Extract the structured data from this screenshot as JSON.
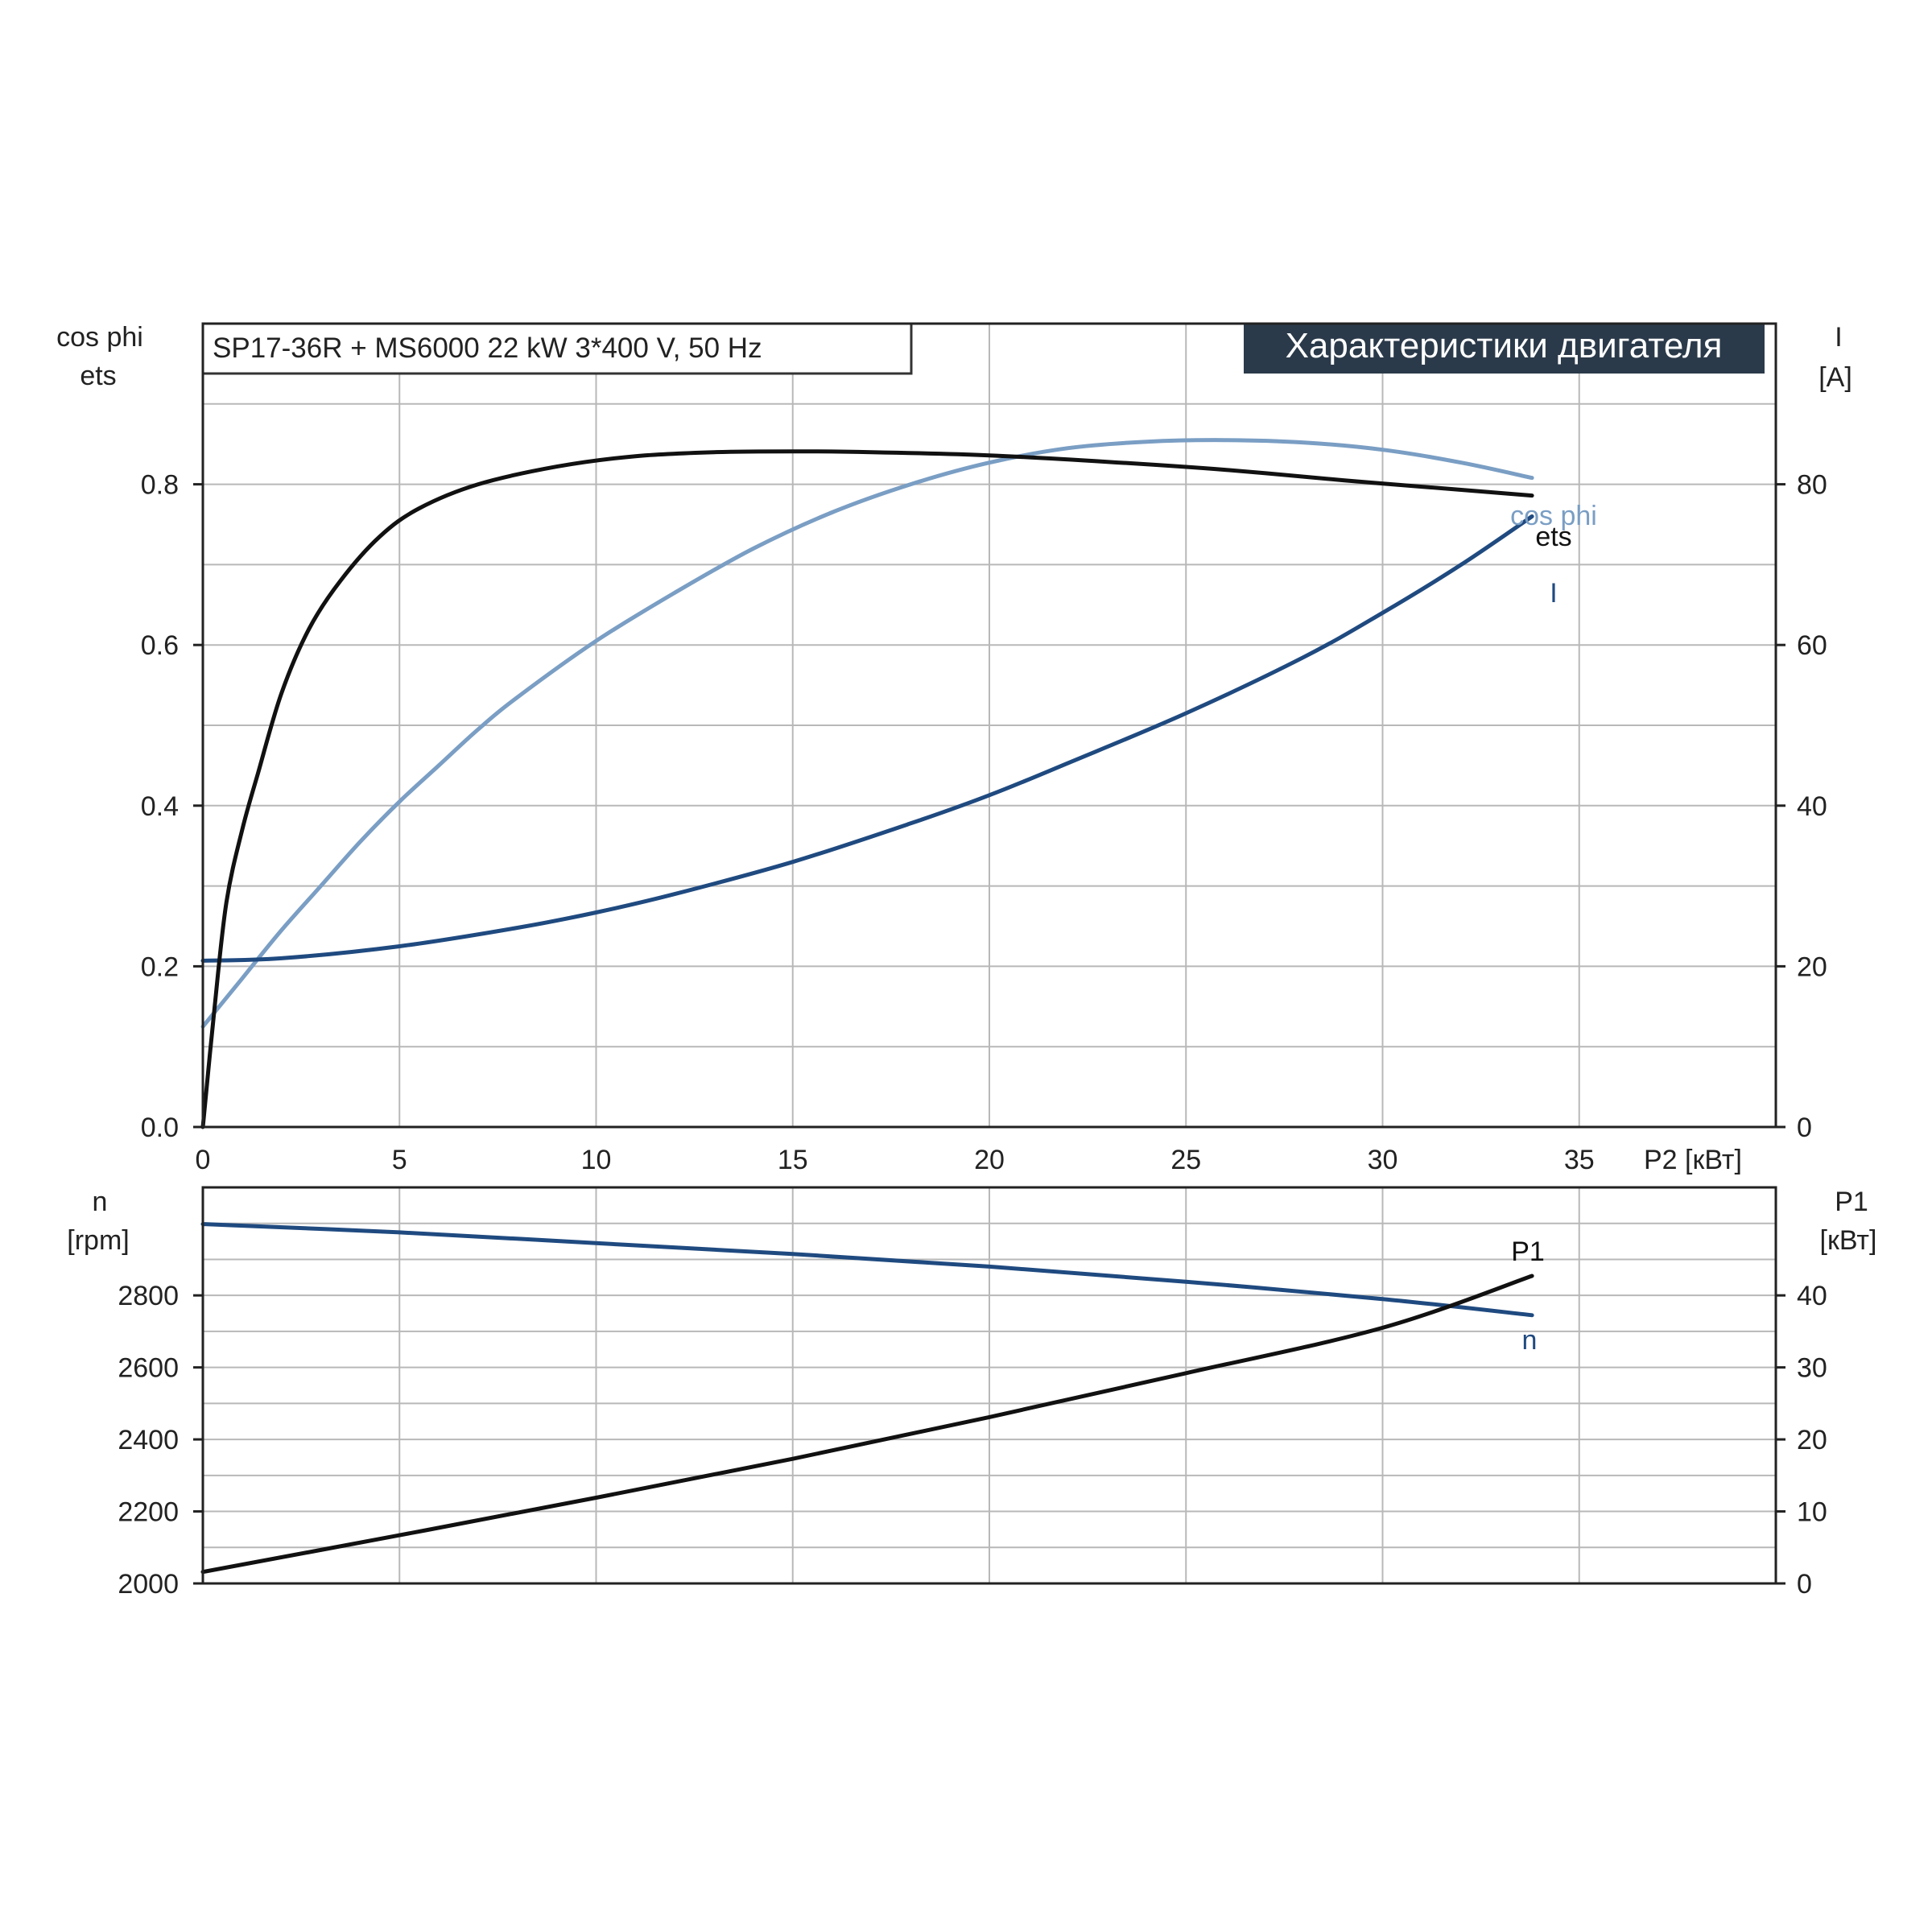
{
  "chart_data": [
    {
      "type": "line",
      "subtitle": "SP17-36R + MS6000   22 kW   3*400 V, 50 Hz",
      "title": "Характеристики двигателя",
      "xlabel": "P2 [кВт]",
      "ylabel_left": [
        "cos phi",
        "ets"
      ],
      "ylabel_right": [
        "I",
        "[A]"
      ],
      "xlim": [
        0,
        40
      ],
      "ylim_left": [
        0,
        1.0
      ],
      "ylim_right": [
        0,
        100
      ],
      "x_ticks": [
        "0",
        "5",
        "10",
        "15",
        "20",
        "25",
        "30",
        "35"
      ],
      "y_ticks_left": [
        "0.0",
        "0.2",
        "0.4",
        "0.6",
        "0.8"
      ],
      "y_ticks_right": [
        "0",
        "20",
        "40",
        "60",
        "80"
      ],
      "grid": true,
      "series": [
        {
          "name": "ets",
          "axis": "left",
          "color": "#111111",
          "x": [
            0,
            0.3,
            0.6,
            1.0,
            1.4,
            2.0,
            2.7,
            3.5,
            4.5,
            5.5,
            7,
            9,
            11,
            13,
            15,
            17,
            20,
            23,
            26,
            29,
            31,
            33.8
          ],
          "y": [
            0.0,
            0.15,
            0.28,
            0.37,
            0.44,
            0.54,
            0.62,
            0.68,
            0.735,
            0.77,
            0.8,
            0.822,
            0.835,
            0.84,
            0.841,
            0.84,
            0.836,
            0.828,
            0.818,
            0.805,
            0.797,
            0.786
          ]
        },
        {
          "name": "cos phi",
          "axis": "left",
          "color": "#7a9ec4",
          "x": [
            0,
            1,
            2,
            3,
            4,
            5,
            6,
            7,
            8,
            10,
            12,
            14,
            16,
            18,
            20,
            22,
            24,
            26,
            28,
            30,
            32,
            33.8
          ],
          "y": [
            0.125,
            0.185,
            0.245,
            0.3,
            0.355,
            0.405,
            0.45,
            0.495,
            0.535,
            0.605,
            0.665,
            0.72,
            0.765,
            0.8,
            0.827,
            0.845,
            0.853,
            0.855,
            0.852,
            0.843,
            0.827,
            0.808
          ]
        },
        {
          "name": "I",
          "axis": "right",
          "color": "#1f4a80",
          "x": [
            0,
            2,
            5,
            8,
            10,
            12,
            15,
            18,
            20,
            22,
            25,
            28,
            30,
            32,
            33.8
          ],
          "y": [
            20.7,
            21.0,
            22.5,
            24.8,
            26.7,
            29,
            33,
            37.8,
            41.3,
            45.3,
            51.5,
            58.5,
            64,
            70,
            76
          ]
        }
      ]
    },
    {
      "type": "line",
      "xlim": [
        0,
        40
      ],
      "ylabel_left": [
        "n",
        "[rpm]"
      ],
      "ylabel_right": [
        "P1",
        "[кВт]"
      ],
      "ylim_left": [
        2000,
        3100
      ],
      "ylim_right": [
        0,
        55
      ],
      "y_ticks_left": [
        "2000",
        "2200",
        "2400",
        "2600",
        "2800"
      ],
      "y_ticks_right": [
        "0",
        "10",
        "20",
        "30",
        "40"
      ],
      "grid": true,
      "series": [
        {
          "name": "n",
          "axis": "left",
          "color": "#1f4a80",
          "x": [
            0,
            5,
            10,
            15,
            20,
            25,
            30,
            33.8
          ],
          "y": [
            2998,
            2975,
            2945,
            2915,
            2880,
            2838,
            2790,
            2745
          ]
        },
        {
          "name": "P1",
          "axis": "right",
          "color": "#111111",
          "x": [
            0,
            5,
            10,
            15,
            20,
            25,
            30,
            33.8
          ],
          "y": [
            1.6,
            6.7,
            11.9,
            17.3,
            23.1,
            29.2,
            35.5,
            42.7
          ]
        }
      ]
    }
  ]
}
